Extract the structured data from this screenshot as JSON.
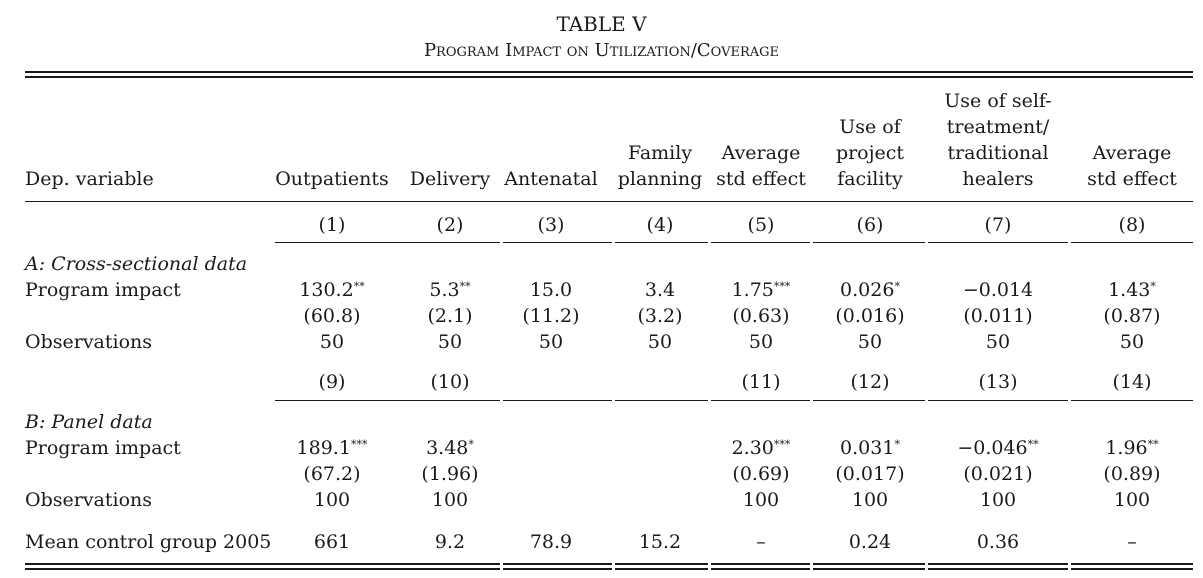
{
  "table": {
    "title": "TABLE V",
    "subtitle": "Program Impact on Utilization/Coverage",
    "headers": [
      "Dep. variable",
      [
        "Outpatients"
      ],
      [
        "Delivery"
      ],
      [
        "Antenatal"
      ],
      [
        "Family",
        "planning"
      ],
      [
        "Average",
        "std effect"
      ],
      [
        "Use of",
        "project",
        "facility"
      ],
      [
        "Use of self-",
        "treatment/",
        "traditional",
        "healers"
      ],
      [
        "Average",
        "std effect"
      ]
    ],
    "col_nums_a": [
      "(1)",
      "(2)",
      "(3)",
      "(4)",
      "(5)",
      "(6)",
      "(7)",
      "(8)"
    ],
    "section_a": {
      "label": "A: Cross-sectional data",
      "impact_label": "Program impact",
      "impact": [
        {
          "v": "130.2",
          "s": "**"
        },
        {
          "v": "5.3",
          "s": "**"
        },
        {
          "v": "15.0",
          "s": ""
        },
        {
          "v": "3.4",
          "s": ""
        },
        {
          "v": "1.75",
          "s": "***"
        },
        {
          "v": "0.026",
          "s": "*"
        },
        {
          "v": "−0.014",
          "s": ""
        },
        {
          "v": "1.43",
          "s": "*"
        }
      ],
      "se": [
        "(60.8)",
        "(2.1)",
        "(11.2)",
        "(3.2)",
        "(0.63)",
        "(0.016)",
        "(0.011)",
        "(0.87)"
      ],
      "obs_label": "Observations",
      "obs": [
        "50",
        "50",
        "50",
        "50",
        "50",
        "50",
        "50",
        "50"
      ]
    },
    "col_nums_b": [
      "(9)",
      "(10)",
      "",
      "",
      "(11)",
      "(12)",
      "(13)",
      "(14)"
    ],
    "section_b": {
      "label": "B: Panel data",
      "impact_label": "Program impact",
      "impact": [
        {
          "v": "189.1",
          "s": "***"
        },
        {
          "v": "3.48",
          "s": "*"
        },
        {
          "v": "",
          "s": ""
        },
        {
          "v": "",
          "s": ""
        },
        {
          "v": "2.30",
          "s": "***"
        },
        {
          "v": "0.031",
          "s": "*"
        },
        {
          "v": "−0.046",
          "s": "**"
        },
        {
          "v": "1.96",
          "s": "**"
        }
      ],
      "se": [
        "(67.2)",
        "(1.96)",
        "",
        "",
        "(0.69)",
        "(0.017)",
        "(0.021)",
        "(0.89)"
      ],
      "obs_label": "Observations",
      "obs": [
        "100",
        "100",
        "",
        "",
        "100",
        "100",
        "100",
        "100"
      ]
    },
    "mean_label": "Mean control group 2005",
    "mean": [
      "661",
      "9.2",
      "78.9",
      "15.2",
      "–",
      "0.24",
      "0.36",
      "–"
    ]
  }
}
